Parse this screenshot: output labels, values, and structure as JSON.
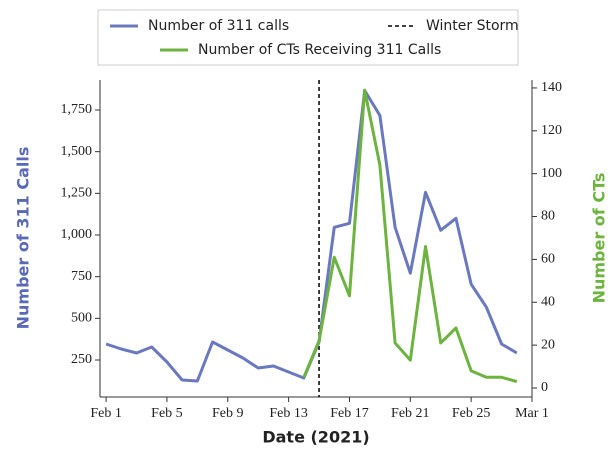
{
  "chart_data": {
    "type": "line",
    "x_label": "Date (2021)",
    "y_label": "Number of 311 Calls",
    "y2_label": "Number of CTs",
    "x": [
      1,
      2,
      3,
      4,
      5,
      6,
      7,
      8,
      9,
      10,
      11,
      12,
      13,
      14,
      15,
      16,
      17,
      18,
      19,
      20,
      21,
      22,
      23,
      24,
      25,
      26,
      27,
      28
    ],
    "xlim": [
      0.6,
      29
    ],
    "xticks": [
      {
        "value": 1,
        "label": "Feb 1"
      },
      {
        "value": 5,
        "label": "Feb 5"
      },
      {
        "value": 9,
        "label": "Feb 9"
      },
      {
        "value": 13,
        "label": "Feb 13"
      },
      {
        "value": 17,
        "label": "Feb 17"
      },
      {
        "value": 21,
        "label": "Feb 21"
      },
      {
        "value": 25,
        "label": "Feb 25"
      },
      {
        "value": 29,
        "label": "Mar 1"
      }
    ],
    "ylim": [
      28,
      1930
    ],
    "yticks": [
      250,
      500,
      750,
      {
        "value": 1000,
        "label": "1,000"
      },
      {
        "value": 1250,
        "label": "1,250"
      },
      {
        "value": 1500,
        "label": "1,500"
      },
      {
        "value": 1750,
        "label": "1,750"
      }
    ],
    "y2lim": [
      -4.2,
      143.7
    ],
    "y2ticks": [
      0,
      20,
      40,
      60,
      80,
      100,
      120,
      140
    ],
    "series": [
      {
        "name": "Number of 311 calls",
        "color": "#6a78c0",
        "values": [
          346,
          316,
          292,
          328,
          238,
          130,
          124,
          358,
          310,
          262,
          202,
          214,
          178,
          142,
          358,
          1046,
          1070,
          1867,
          1717,
          1046,
          771,
          1256,
          1028,
          1100,
          705,
          567,
          346,
          292
        ]
      },
      {
        "name": "Number of CTs Receiving 311 Calls",
        "color": "#6cb33f",
        "axis": "y2",
        "values": [
          null,
          null,
          null,
          null,
          null,
          null,
          null,
          null,
          null,
          null,
          null,
          null,
          null,
          5,
          22,
          61,
          43,
          139,
          104,
          21,
          13,
          66,
          21,
          28,
          8,
          5,
          5,
          3
        ]
      }
    ],
    "annotation": {
      "label": "Winter Storm",
      "x": 15,
      "color": "#000000"
    }
  }
}
